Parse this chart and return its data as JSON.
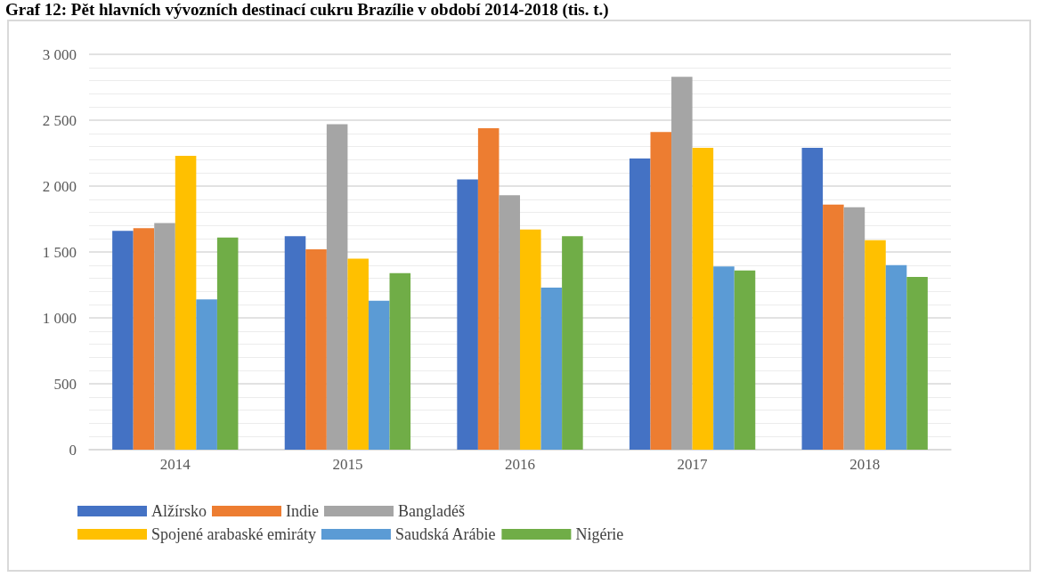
{
  "chart_data": {
    "type": "bar",
    "title": "Graf 12: Pět hlavních vývozních destinací cukru Brazílie v období 2014-2018 (tis. t.)",
    "categories": [
      "2014",
      "2015",
      "2016",
      "2017",
      "2018"
    ],
    "series": [
      {
        "name": "Alžírsko",
        "color": "#4472c4",
        "values": [
          1660,
          1620,
          2050,
          2210,
          2290
        ]
      },
      {
        "name": "Indie",
        "color": "#ed7d31",
        "values": [
          1680,
          1520,
          2440,
          2410,
          1860
        ]
      },
      {
        "name": "Bangladéš",
        "color": "#a5a5a5",
        "values": [
          1720,
          2470,
          1930,
          2830,
          1840
        ]
      },
      {
        "name": "Spojené arabaské emiráty",
        "color": "#ffc000",
        "values": [
          2230,
          1450,
          1670,
          2290,
          1590
        ]
      },
      {
        "name": "Saudská Arábie",
        "color": "#5b9bd5",
        "values": [
          1140,
          1130,
          1230,
          1390,
          1400
        ]
      },
      {
        "name": "Nigérie",
        "color": "#70ad47",
        "values": [
          1610,
          1340,
          1620,
          1360,
          1310
        ]
      }
    ],
    "ylim": [
      0,
      3000
    ],
    "yticks": [
      {
        "value": 0,
        "label": "0"
      },
      {
        "value": 500,
        "label": "500"
      },
      {
        "value": 1000,
        "label": "1 000"
      },
      {
        "value": 1500,
        "label": "1 500"
      },
      {
        "value": 2000,
        "label": "2 000"
      },
      {
        "value": 2500,
        "label": "2 500"
      },
      {
        "value": 3000,
        "label": "3 000"
      }
    ],
    "grid": true,
    "legend": "bottom"
  }
}
